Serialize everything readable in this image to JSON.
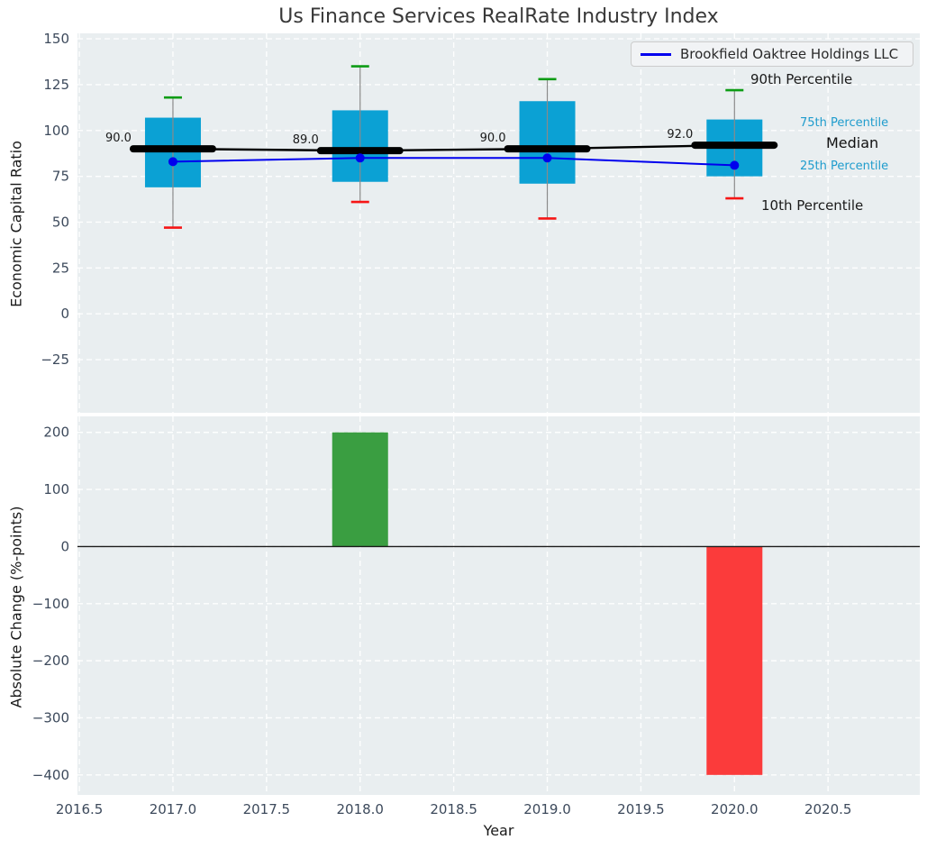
{
  "title": "Us Finance Services RealRate Industry Index",
  "legend": {
    "label": "Brookfield Oaktree Holdings LLC",
    "line_color": "#0000ee"
  },
  "axis": {
    "top_ylabel": "Economic Capital Ratio",
    "bottom_ylabel": "Absolute Change (%-points)",
    "xlabel": "Year"
  },
  "annotations": {
    "p90": {
      "label": "90th Percentile",
      "color": "#1a1a1a"
    },
    "p75": {
      "label": "75th Percentile",
      "color": "#1f9ccd"
    },
    "median": {
      "label": "Median",
      "color": "#111111"
    },
    "p25": {
      "label": "25th Percentile",
      "color": "#1f9ccd"
    },
    "p10": {
      "label": "10th Percentile",
      "color": "#1a1a1a"
    }
  },
  "colors": {
    "axes_bg": "#e9eef0",
    "grid": "#ffffff",
    "tick_label": "#3d4a5c",
    "box_fill": "#0ba1d4",
    "whisker": "#8a8a8a",
    "cap_90": "#0d9c15",
    "cap_10": "#f61515",
    "median_line": "#000000",
    "company_line": "#0000ee",
    "bar_positive": "#3a9e41",
    "bar_negative": "#fb3b3b",
    "zero_line": "#1a1a1a"
  },
  "chart_data": [
    {
      "type": "boxplot",
      "title": "Us Finance Services RealRate Industry Index",
      "ylabel": "Economic Capital Ratio",
      "ylim": [
        -54,
        153
      ],
      "yticks": [
        150,
        125,
        100,
        75,
        50,
        25,
        0,
        -25
      ],
      "ytick_labels": [
        "150",
        "125",
        "100",
        "75",
        "50",
        "25",
        "0",
        "−25"
      ],
      "grid": true,
      "legend_position": "upper right",
      "years": [
        2017,
        2018,
        2019,
        2020
      ],
      "boxes": [
        {
          "year": 2017,
          "p90": 118,
          "p75": 107,
          "median": 90,
          "p25": 69,
          "p10": 47
        },
        {
          "year": 2018,
          "p90": 135,
          "p75": 111,
          "median": 89,
          "p25": 72,
          "p10": 61
        },
        {
          "year": 2019,
          "p90": 128,
          "p75": 116,
          "median": 90,
          "p25": 71,
          "p10": 52
        },
        {
          "year": 2020,
          "p90": 122,
          "p75": 106,
          "median": 92,
          "p25": 75,
          "p10": 63
        }
      ],
      "median_labels": [
        "90.0",
        "89.0",
        "90.0",
        "92.0"
      ],
      "series": [
        {
          "name": "Median",
          "values": [
            90,
            89,
            90,
            92
          ],
          "color": "#000000"
        },
        {
          "name": "Brookfield Oaktree Holdings LLC",
          "values": [
            83,
            85,
            85,
            81
          ],
          "color": "#0000ee"
        }
      ]
    },
    {
      "type": "bar",
      "ylabel": "Absolute Change (%-points)",
      "xlabel": "Year",
      "ylim": [
        -435,
        228
      ],
      "yticks": [
        200,
        100,
        0,
        -100,
        -200,
        -300,
        -400
      ],
      "ytick_labels": [
        "200",
        "100",
        "0",
        "−100",
        "−200",
        "−300",
        "−400"
      ],
      "xlim": [
        2016.49,
        2020.99
      ],
      "xticks": [
        2016.5,
        2017.0,
        2017.5,
        2018.0,
        2018.5,
        2019.0,
        2019.5,
        2020.0,
        2020.5
      ],
      "xtick_labels": [
        "2016.5",
        "2017.0",
        "2017.5",
        "2018.0",
        "2018.5",
        "2019.0",
        "2019.5",
        "2020.0",
        "2020.5"
      ],
      "bars": [
        {
          "year": 2018,
          "value": 200,
          "color": "#3a9e41"
        },
        {
          "year": 2020,
          "value": -400,
          "color": "#fb3b3b"
        }
      ]
    }
  ]
}
